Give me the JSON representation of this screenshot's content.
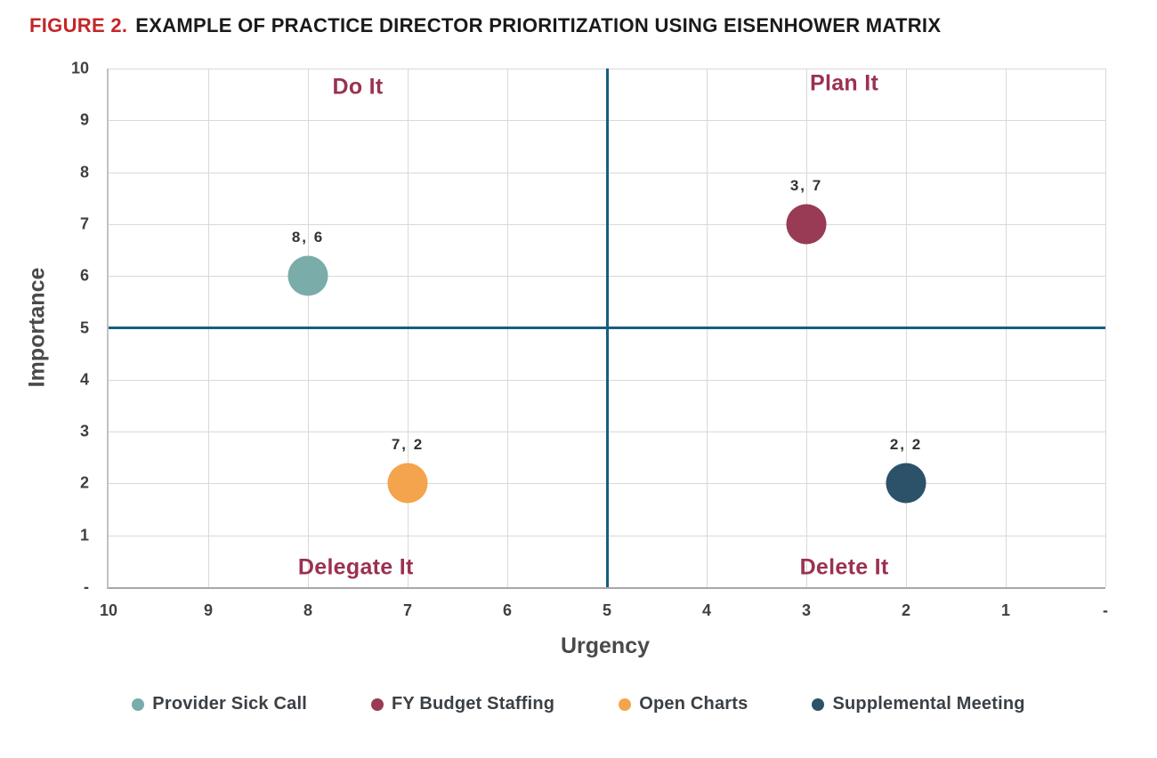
{
  "title": {
    "figure_label": "FIGURE 2.",
    "text": "EXAMPLE OF PRACTICE DIRECTOR PRIORITIZATION USING EISENHOWER MATRIX"
  },
  "colors": {
    "figure_label_red": "#C5262A",
    "title_black": "#1A1A1A",
    "quadrant_label": "#9B3150",
    "crosshair_blue": "#175E80",
    "gridline": "#D9D9D9",
    "axis_line": "#A8A8A8",
    "tick_text": "#404040",
    "axis_title_text": "#4A4A4A",
    "legend_text": "#3B4045"
  },
  "chart_data": {
    "type": "scatter",
    "xlabel": "Urgency",
    "ylabel": "Importance",
    "xlim": [
      10,
      0
    ],
    "ylim": [
      0,
      10
    ],
    "x_axis_reversed": true,
    "grid": true,
    "x_ticks_left_to_right": [
      "10",
      "9",
      "8",
      "7",
      "6",
      "5",
      "4",
      "3",
      "2",
      "1",
      "-"
    ],
    "y_ticks_top_to_bottom": [
      "10",
      "9",
      "8",
      "7",
      "6",
      "5",
      "4",
      "3",
      "2",
      "1",
      "-"
    ],
    "crosshair": {
      "x": 5,
      "y": 5
    },
    "quadrant_labels": [
      {
        "label": "Do It",
        "position": "top-left"
      },
      {
        "label": "Plan It",
        "position": "top-right"
      },
      {
        "label": "Delegate It",
        "position": "bottom-left"
      },
      {
        "label": "Delete It",
        "position": "bottom-right"
      }
    ],
    "series": [
      {
        "name": "Provider Sick Call",
        "x": 8,
        "y": 6,
        "data_label": "8, 6",
        "color": "#7AACA9"
      },
      {
        "name": "FY Budget Staffing",
        "x": 3,
        "y": 7,
        "data_label": "3, 7",
        "color": "#993B55"
      },
      {
        "name": "Open Charts",
        "x": 7,
        "y": 2,
        "data_label": "7, 2",
        "color": "#F4A44C"
      },
      {
        "name": "Supplemental Meeting",
        "x": 2,
        "y": 2,
        "data_label": "2, 2",
        "color": "#2C5269"
      }
    ],
    "legend_position": "bottom"
  }
}
